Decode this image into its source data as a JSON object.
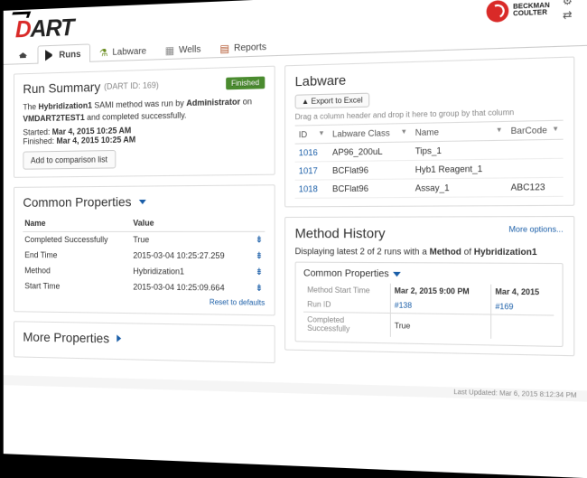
{
  "logo": {
    "first": "D",
    "rest": "ART"
  },
  "brand": {
    "line1": "BECKMAN",
    "line2": "COULTER"
  },
  "tabs": {
    "home": "",
    "runs": "Runs",
    "labware": "Labware",
    "wells": "Wells",
    "reports": "Reports"
  },
  "run_summary": {
    "title": "Run Summary",
    "dart_id_label": "(DART ID: 169)",
    "status": "Finished",
    "method": "Hybridization1",
    "runby_prefix": "The ",
    "runby_mid": " SAMI method was run by ",
    "user": "Administrator",
    "on_label": " on ",
    "machine": "VMDART2TEST1",
    "completed_text": " and completed successfully.",
    "started_label": "Started:",
    "started_value": "Mar 4, 2015 10:25 AM",
    "finished_label": "Finished:",
    "finished_value": "Mar 4, 2015 10:25 AM",
    "add_btn": "Add to comparison list"
  },
  "common_props": {
    "title": "Common Properties",
    "cols": {
      "name": "Name",
      "value": "Value"
    },
    "rows": [
      {
        "name": "Completed Successfully",
        "value": "True"
      },
      {
        "name": "End Time",
        "value": "2015-03-04 10:25:27.259"
      },
      {
        "name": "Method",
        "value": "Hybridization1"
      },
      {
        "name": "Start Time",
        "value": "2015-03-04 10:25:09.664"
      }
    ],
    "reset": "Reset to defaults"
  },
  "more_props": {
    "title": "More Properties"
  },
  "labware": {
    "title": "Labware",
    "export_btn": "Export to Excel",
    "hint": "Drag a column header and drop it here to group by that column",
    "cols": {
      "id": "ID",
      "class": "Labware Class",
      "name": "Name",
      "barcode": "BarCode"
    },
    "rows": [
      {
        "id": "1016",
        "cls": "AP96_200uL",
        "name": "Tips_1",
        "barcode": ""
      },
      {
        "id": "1017",
        "cls": "BCFlat96",
        "name": "Hyb1 Reagent_1",
        "barcode": ""
      },
      {
        "id": "1018",
        "cls": "BCFlat96",
        "name": "Assay_1",
        "barcode": "ABC123"
      }
    ]
  },
  "method_history": {
    "title": "Method History",
    "more": "More options...",
    "display_prefix": "Displaying latest 2 of 2 runs with a ",
    "method_word": "Method",
    "of_word": " of ",
    "method_name": "Hybridization1",
    "sub_title": "Common Properties",
    "row_labels": {
      "start": "Method Start Time",
      "runid": "Run ID",
      "cs": "Completed Successfully"
    },
    "runs": [
      {
        "start": "Mar 2, 2015 9:00 PM",
        "id": "#138",
        "cs": "True"
      },
      {
        "start": "Mar 4, 2015",
        "id": "#169",
        "cs": ""
      }
    ]
  },
  "footer": "Last Updated: Mar 6, 2015 8:12:34 PM"
}
